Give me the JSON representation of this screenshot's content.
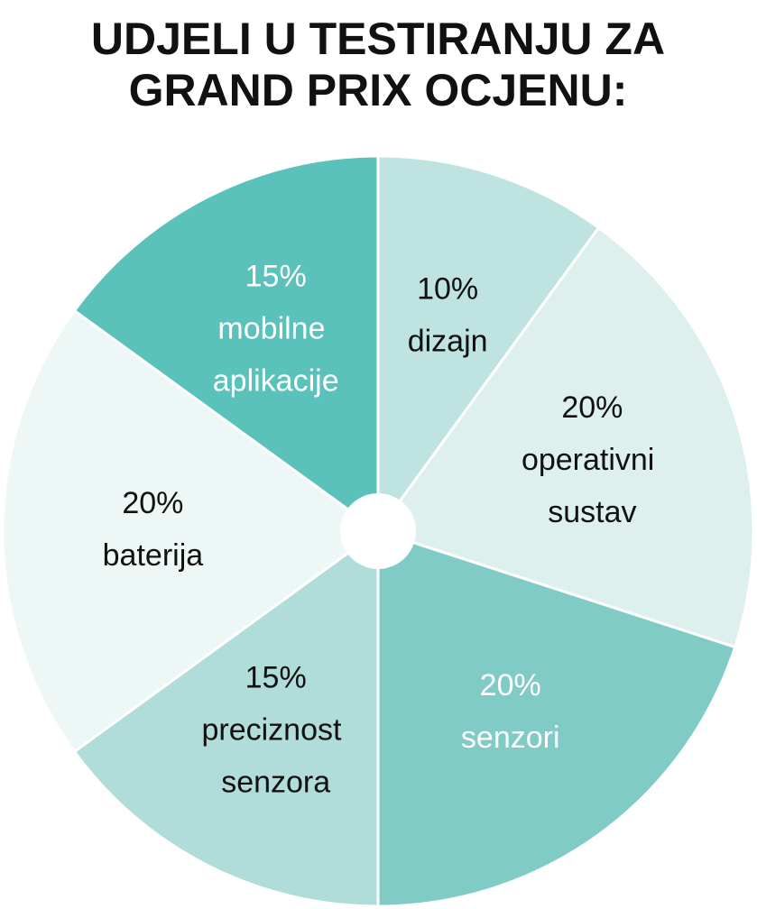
{
  "chart_data": {
    "type": "pie",
    "title": [
      "UDJELI U TESTIRANJU ZA",
      "GRAND PRIX OCJENU:"
    ],
    "categories": [
      "dizajn",
      "operativni sustav",
      "senzori",
      "preciznost senzora",
      "baterija",
      "mobilne aplikacije"
    ],
    "values": [
      10,
      20,
      20,
      15,
      20,
      15
    ],
    "value_labels": [
      "10%",
      "20%",
      "20%",
      "15%",
      "20%",
      "15%"
    ],
    "colors": [
      "#bfe3e0",
      "#ddf0ee",
      "#80cbc6",
      "#b0dcd9",
      "#edf7f6",
      "#5bc1bb"
    ]
  }
}
